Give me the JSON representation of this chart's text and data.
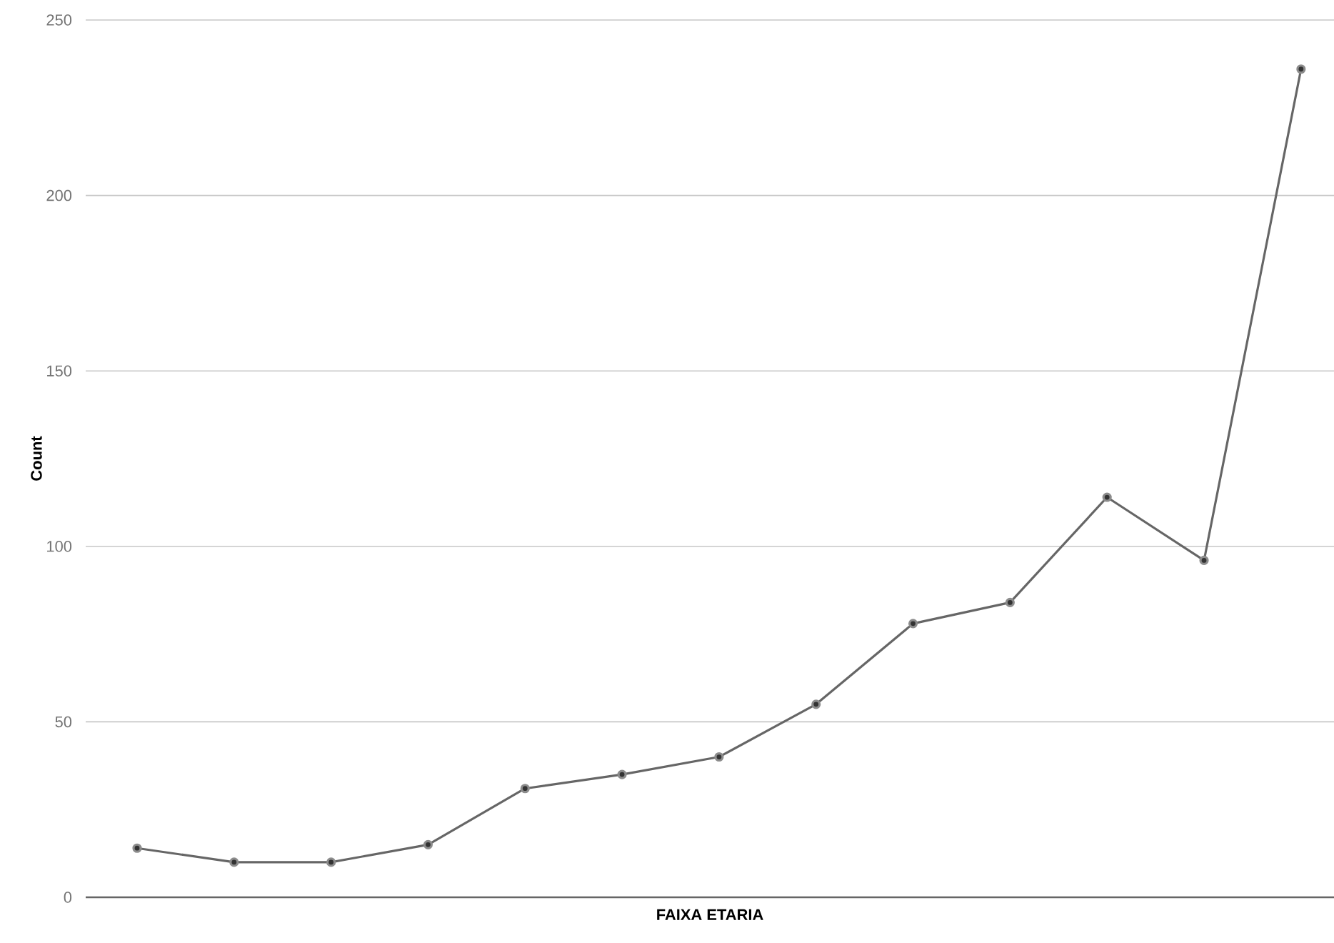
{
  "chart_data": {
    "type": "line",
    "xlabel": "FAIXA ETARIA",
    "ylabel": "Count",
    "categories": [
      null,
      null,
      null,
      null,
      null,
      null,
      null,
      null,
      null,
      null,
      null,
      null,
      null
    ],
    "series": [
      {
        "color": "#666666",
        "values": [
          14,
          10,
          10,
          15,
          31,
          35,
          40,
          55,
          78,
          84,
          114,
          96,
          236
        ]
      }
    ],
    "ylim": [
      0,
      250
    ],
    "yticks": [
      0,
      50,
      100,
      150,
      200,
      250
    ],
    "grid": "y",
    "marker": "circle",
    "line_style": "solid"
  }
}
